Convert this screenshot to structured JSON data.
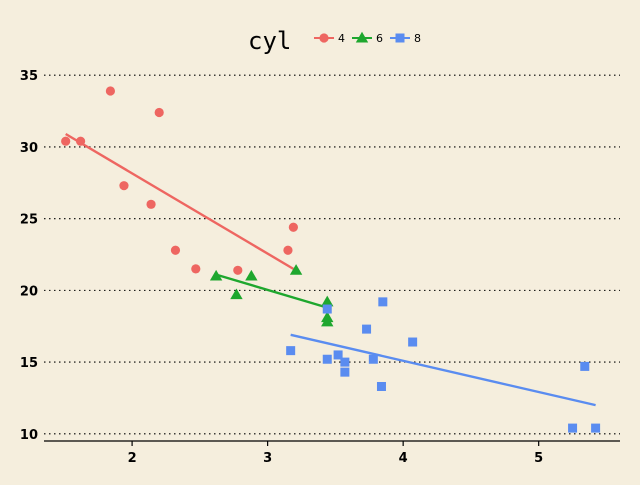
{
  "chart_data": {
    "type": "scatter",
    "title": "",
    "xlabel": "",
    "ylabel": "",
    "xlim": [
      1.35,
      5.6
    ],
    "ylim": [
      9.5,
      36.2
    ],
    "xticks": [
      2,
      3,
      4,
      5
    ],
    "yticks": [
      10,
      15,
      20,
      25,
      30,
      35
    ],
    "grid": "horizontal dotted",
    "legend": {
      "title": "cyl",
      "placement": "top",
      "entries": [
        "4",
        "6",
        "8"
      ]
    },
    "series": [
      {
        "name": "4",
        "marker": "circle",
        "color": "#EE6661",
        "points": [
          {
            "x": 1.51,
            "y": 30.4
          },
          {
            "x": 1.62,
            "y": 30.4
          },
          {
            "x": 1.84,
            "y": 33.9
          },
          {
            "x": 1.94,
            "y": 27.3
          },
          {
            "x": 2.14,
            "y": 26.0
          },
          {
            "x": 2.2,
            "y": 32.4
          },
          {
            "x": 2.32,
            "y": 22.8
          },
          {
            "x": 2.47,
            "y": 21.5
          },
          {
            "x": 2.78,
            "y": 21.4
          },
          {
            "x": 3.15,
            "y": 22.8
          },
          {
            "x": 3.19,
            "y": 24.4
          }
        ],
        "fit": {
          "x": [
            1.51,
            3.19
          ],
          "y": [
            30.9,
            21.5
          ]
        }
      },
      {
        "name": "6",
        "marker": "triangle",
        "color": "#1EA72E",
        "points": [
          {
            "x": 2.62,
            "y": 21.0
          },
          {
            "x": 2.77,
            "y": 19.7
          },
          {
            "x": 2.88,
            "y": 21.0
          },
          {
            "x": 3.21,
            "y": 21.4
          },
          {
            "x": 3.44,
            "y": 18.1
          },
          {
            "x": 3.44,
            "y": 19.2
          },
          {
            "x": 3.44,
            "y": 17.8
          }
        ],
        "fit": {
          "x": [
            2.62,
            3.44
          ],
          "y": [
            21.1,
            18.8
          ]
        }
      },
      {
        "name": "8",
        "marker": "square",
        "color": "#5A8CF0",
        "points": [
          {
            "x": 3.17,
            "y": 15.8
          },
          {
            "x": 3.44,
            "y": 18.7
          },
          {
            "x": 3.44,
            "y": 15.2
          },
          {
            "x": 3.52,
            "y": 15.5
          },
          {
            "x": 3.57,
            "y": 15.0
          },
          {
            "x": 3.57,
            "y": 14.3
          },
          {
            "x": 3.73,
            "y": 17.3
          },
          {
            "x": 3.78,
            "y": 15.2
          },
          {
            "x": 3.84,
            "y": 13.3
          },
          {
            "x": 3.85,
            "y": 19.2
          },
          {
            "x": 4.07,
            "y": 16.4
          },
          {
            "x": 5.25,
            "y": 10.4
          },
          {
            "x": 5.34,
            "y": 14.7
          },
          {
            "x": 5.42,
            "y": 10.4
          }
        ],
        "fit": {
          "x": [
            3.17,
            5.42
          ],
          "y": [
            16.9,
            12.0
          ]
        }
      }
    ]
  }
}
